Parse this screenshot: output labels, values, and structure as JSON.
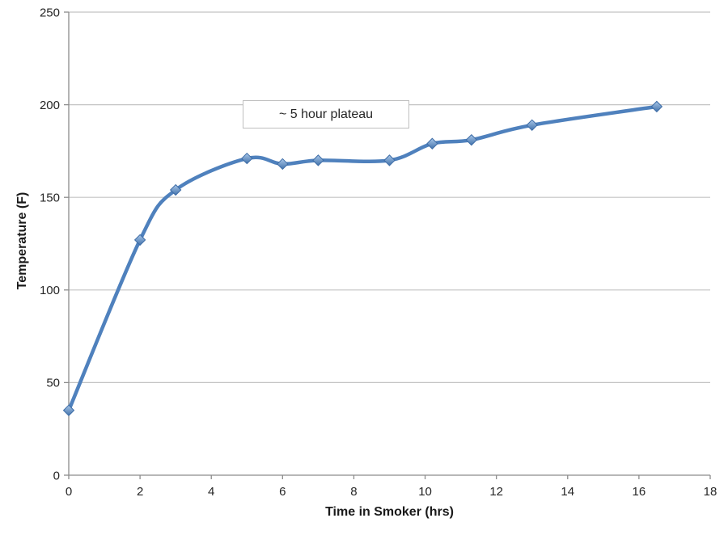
{
  "chart_data": {
    "type": "line",
    "title": "",
    "xlabel": "Time in Smoker (hrs)",
    "ylabel": "Temperature (F)",
    "series": [
      {
        "name": "Temperature",
        "x": [
          0,
          2,
          3,
          5,
          6,
          7,
          9,
          10.2,
          11.3,
          13,
          16.5
        ],
        "y": [
          35,
          127,
          154,
          171,
          168,
          170,
          170,
          179,
          181,
          189,
          199
        ]
      }
    ],
    "xlim": [
      0,
      18
    ],
    "ylim": [
      0,
      250
    ],
    "x_ticks": [
      0,
      2,
      4,
      6,
      8,
      10,
      12,
      14,
      16,
      18
    ],
    "y_ticks": [
      0,
      50,
      100,
      150,
      200,
      250
    ],
    "grid": "horizontal-only",
    "legend": "none",
    "smooth_line": true,
    "marker": "diamond",
    "annotation": {
      "text": "~ 5 hour plateau"
    },
    "colors": {
      "line": "#4f81bd",
      "marker_light": "#a9c7e9",
      "marker_dark": "#4272ab",
      "marker_stroke": "#3d6ca6",
      "gridline": "#c3c3c3",
      "axis": "#8c8c8c",
      "tick_text": "#262626"
    }
  }
}
